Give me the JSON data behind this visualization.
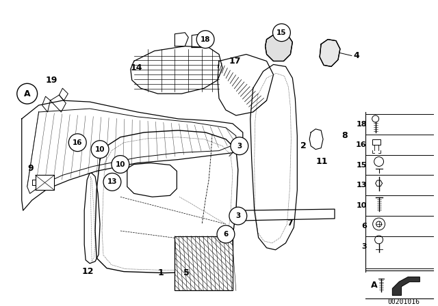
{
  "bg_color": "#ffffff",
  "line_color": "#000000",
  "watermark": "00201016",
  "figsize": [
    6.4,
    4.48
  ],
  "dpi": 100
}
